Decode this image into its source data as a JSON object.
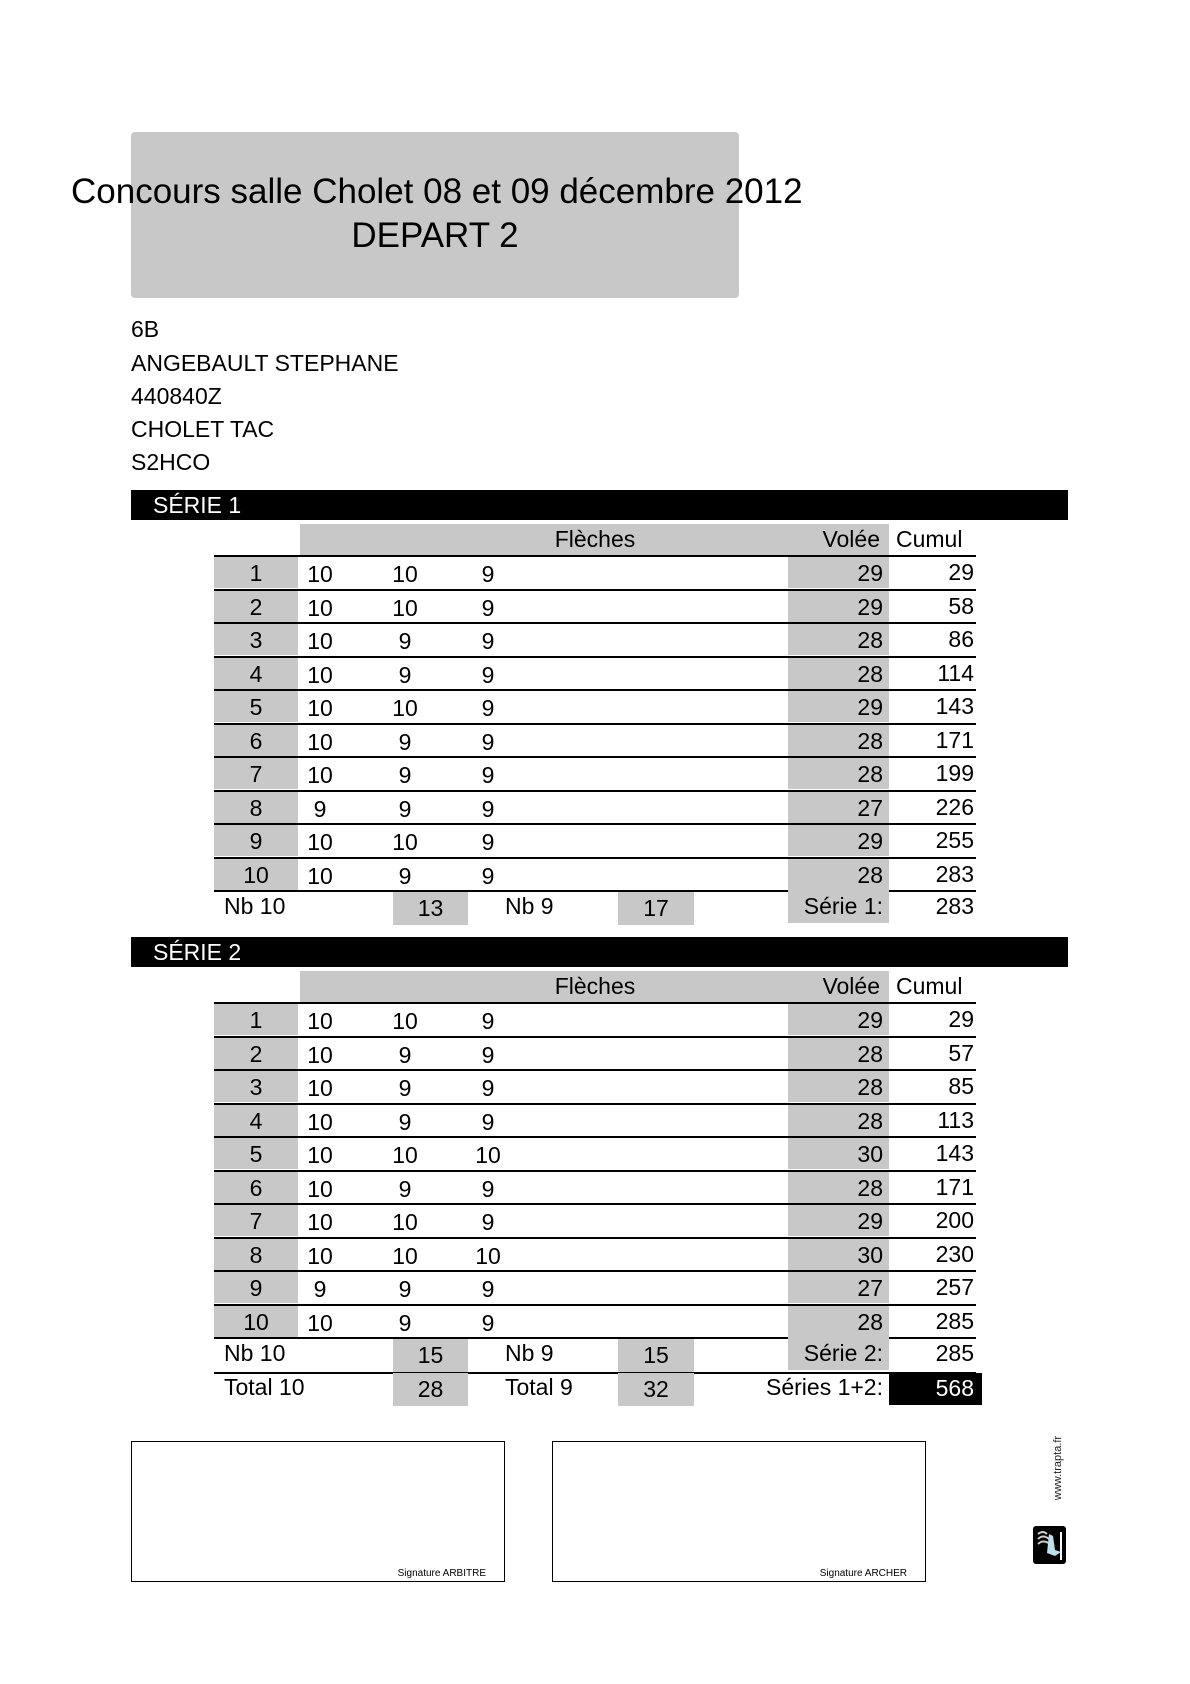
{
  "header": {
    "title": "Concours salle Cholet 08 et 09 décembre 2012",
    "subtitle": "DEPART 2"
  },
  "archer": {
    "target": "6B",
    "name": "ANGEBAULT STEPHANE",
    "license": "440840Z",
    "club": "CHOLET TAC",
    "category": "S2HCO"
  },
  "columns": {
    "arrows": "Flèches",
    "end": "Volée",
    "cumul": "Cumul"
  },
  "series": [
    {
      "label": "SÉRIE 1",
      "rows": [
        {
          "n": "1",
          "a": [
            "10",
            "10",
            "9"
          ],
          "end": "29",
          "cumul": "29"
        },
        {
          "n": "2",
          "a": [
            "10",
            "10",
            "9"
          ],
          "end": "29",
          "cumul": "58"
        },
        {
          "n": "3",
          "a": [
            "10",
            "9",
            "9"
          ],
          "end": "28",
          "cumul": "86"
        },
        {
          "n": "4",
          "a": [
            "10",
            "9",
            "9"
          ],
          "end": "28",
          "cumul": "114"
        },
        {
          "n": "5",
          "a": [
            "10",
            "10",
            "9"
          ],
          "end": "29",
          "cumul": "143"
        },
        {
          "n": "6",
          "a": [
            "10",
            "9",
            "9"
          ],
          "end": "28",
          "cumul": "171"
        },
        {
          "n": "7",
          "a": [
            "10",
            "9",
            "9"
          ],
          "end": "28",
          "cumul": "199"
        },
        {
          "n": "8",
          "a": [
            "9",
            "9",
            "9"
          ],
          "end": "27",
          "cumul": "226"
        },
        {
          "n": "9",
          "a": [
            "10",
            "10",
            "9"
          ],
          "end": "29",
          "cumul": "255"
        },
        {
          "n": "10",
          "a": [
            "10",
            "9",
            "9"
          ],
          "end": "28",
          "cumul": "283"
        }
      ],
      "nb10_label": "Nb 10",
      "nb10": "13",
      "nb9_label": "Nb 9",
      "nb9": "17",
      "total_label": "Série 1:",
      "total": "283"
    },
    {
      "label": "SÉRIE 2",
      "rows": [
        {
          "n": "1",
          "a": [
            "10",
            "10",
            "9"
          ],
          "end": "29",
          "cumul": "29"
        },
        {
          "n": "2",
          "a": [
            "10",
            "9",
            "9"
          ],
          "end": "28",
          "cumul": "57"
        },
        {
          "n": "3",
          "a": [
            "10",
            "9",
            "9"
          ],
          "end": "28",
          "cumul": "85"
        },
        {
          "n": "4",
          "a": [
            "10",
            "9",
            "9"
          ],
          "end": "28",
          "cumul": "113"
        },
        {
          "n": "5",
          "a": [
            "10",
            "10",
            "10"
          ],
          "end": "30",
          "cumul": "143"
        },
        {
          "n": "6",
          "a": [
            "10",
            "9",
            "9"
          ],
          "end": "28",
          "cumul": "171"
        },
        {
          "n": "7",
          "a": [
            "10",
            "10",
            "9"
          ],
          "end": "29",
          "cumul": "200"
        },
        {
          "n": "8",
          "a": [
            "10",
            "10",
            "10"
          ],
          "end": "30",
          "cumul": "230"
        },
        {
          "n": "9",
          "a": [
            "9",
            "9",
            "9"
          ],
          "end": "27",
          "cumul": "257"
        },
        {
          "n": "10",
          "a": [
            "10",
            "9",
            "9"
          ],
          "end": "28",
          "cumul": "285"
        }
      ],
      "nb10_label": "Nb 10",
      "nb10": "15",
      "nb9_label": "Nb 9",
      "nb9": "15",
      "total_label": "Série 2:",
      "total": "285"
    }
  ],
  "totals": {
    "total10_label": "Total 10",
    "total10": "28",
    "total9_label": "Total 9",
    "total9": "32",
    "grand_label": "Séries 1+2:",
    "grand": "568"
  },
  "signatures": {
    "referee": "Signature ARBITRE",
    "archer": "Signature ARCHER"
  },
  "footer": {
    "website": "www.trapta.fr",
    "logo_icon": "trapta-logo-icon"
  }
}
